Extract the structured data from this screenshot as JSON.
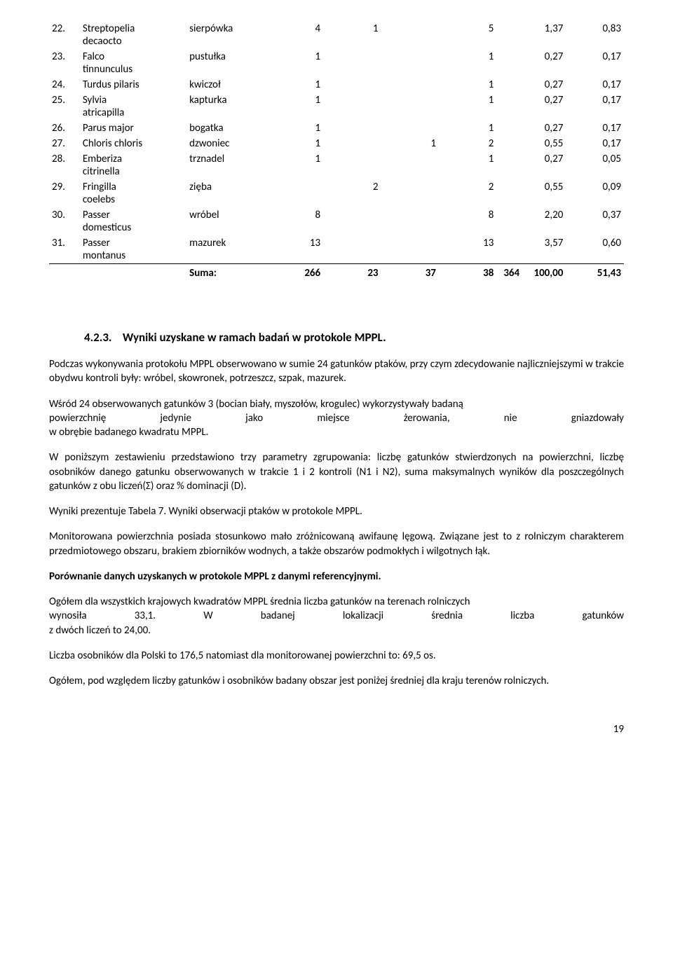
{
  "table": {
    "rows": [
      {
        "n": "22.",
        "latin1": "Streptopelia",
        "latin2": "decaocto",
        "pl": "sierpówka",
        "a": "4",
        "b": "1",
        "c": "",
        "d": "5",
        "e": "1,37",
        "f": "0,83"
      },
      {
        "n": "23.",
        "latin1": "Falco",
        "latin2": "tinnunculus",
        "pl": "pustułka",
        "a": "1",
        "b": "",
        "c": "",
        "d": "1",
        "e": "0,27",
        "f": "0,17"
      },
      {
        "n": "24.",
        "latin1": "Turdus pilaris",
        "latin2": "",
        "pl": "kwiczoł",
        "a": "1",
        "b": "",
        "c": "",
        "d": "1",
        "e": "0,27",
        "f": "0,17"
      },
      {
        "n": "25.",
        "latin1": "Sylvia",
        "latin2": "atricapilla",
        "pl": "kapturka",
        "a": "1",
        "b": "",
        "c": "",
        "d": "1",
        "e": "0,27",
        "f": "0,17"
      },
      {
        "n": "26.",
        "latin1": "Parus major",
        "latin2": "",
        "pl": "bogatka",
        "a": "1",
        "b": "",
        "c": "",
        "d": "1",
        "e": "0,27",
        "f": "0,17"
      },
      {
        "n": "27.",
        "latin1": "Chloris chloris",
        "latin2": "",
        "pl": "dzwoniec",
        "a": "1",
        "b": "",
        "c": "1",
        "d": "2",
        "e": "0,55",
        "f": "0,17"
      },
      {
        "n": "28.",
        "latin1": "Emberiza",
        "latin2": "citrinella",
        "pl": "trznadel",
        "a": "1",
        "b": "",
        "c": "",
        "d": "1",
        "e": "0,27",
        "f": "0,05"
      },
      {
        "n": "29.",
        "latin1": "Fringilla",
        "latin2": "coelebs",
        "pl": "zięba",
        "a": "",
        "b": "2",
        "c": "",
        "d": "2",
        "e": "0,55",
        "f": "0,09"
      },
      {
        "n": "30.",
        "latin1": "Passer",
        "latin2": "domesticus",
        "pl": "wróbel",
        "a": "8",
        "b": "",
        "c": "",
        "d": "8",
        "e": "2,20",
        "f": "0,37"
      },
      {
        "n": "31.",
        "latin1": "Passer",
        "latin2": "montanus",
        "pl": "mazurek",
        "a": "13",
        "b": "",
        "c": "",
        "d": "13",
        "e": "3,57",
        "f": "0,60"
      }
    ],
    "sum": {
      "label": "Suma:",
      "a": "266",
      "b": "23",
      "c": "37",
      "d": "38",
      "e": "364",
      "f": "100,00",
      "g": "51,43"
    }
  },
  "heading_num": "4.2.3.",
  "heading_text": "Wyniki uzyskane w ramach badań w protokole MPPL.",
  "p1": "Podczas wykonywania protokołu MPPL obserwowano w sumie 24 gatunków ptaków, przy czym zdecydowanie najliczniejszymi w trakcie obydwu kontroli były: wróbel, skowronek, potrzeszcz, szpak, mazurek.",
  "p2_a": "Wśród 24 obserwowanych gatunków 3 (bocian biały, myszołów, krogulec) wykorzystywały badaną",
  "p2_b_words": [
    "powierzchnię",
    "jedynie",
    "jako",
    "miejsce",
    "żerowania,",
    "nie",
    "gniazdowały"
  ],
  "p2_c": "w obrębie badanego kwadratu MPPL.",
  "p3": "W poniższym zestawieniu przedstawiono trzy parametry zgrupowania: liczbę gatunków stwierdzonych na powierzchni, liczbę osobników danego gatunku obserwowanych w trakcie 1 i 2 kontroli (N1 i N2), suma maksymalnych wyników dla poszczególnych gatunków z obu liczeń(Σ) oraz % dominacji (D).",
  "p4": "Wyniki prezentuje Tabela 7. Wyniki obserwacji ptaków w protokole MPPL.",
  "p5": "Monitorowana powierzchnia posiada stosunkowo mało zróżnicowaną awifaunę lęgową. Związane jest to z rolniczym charakterem przedmiotowego obszaru, brakiem zbiorników wodnych, a także obszarów podmokłych i wilgotnych łąk.",
  "p6": "Porównanie danych uzyskanych w protokole MPPL z danymi referencyjnymi.",
  "p7_a": "Ogółem dla wszystkich krajowych kwadratów MPPL średnia liczba gatunków na terenach rolniczych",
  "p7_b_words": [
    "wynosiła",
    "33,1.",
    "W",
    "badanej",
    "lokalizacji",
    "średnia",
    "liczba",
    "gatunków"
  ],
  "p7_c": "z dwóch liczeń to 24,00.",
  "p8": "Liczba osobników dla Polski to 176,5 natomiast dla monitorowanej powierzchni to: 69,5 os.",
  "p9": "Ogółem, pod względem liczby gatunków i osobników badany obszar jest poniżej średniej dla kraju terenów rolniczych.",
  "page": "19"
}
